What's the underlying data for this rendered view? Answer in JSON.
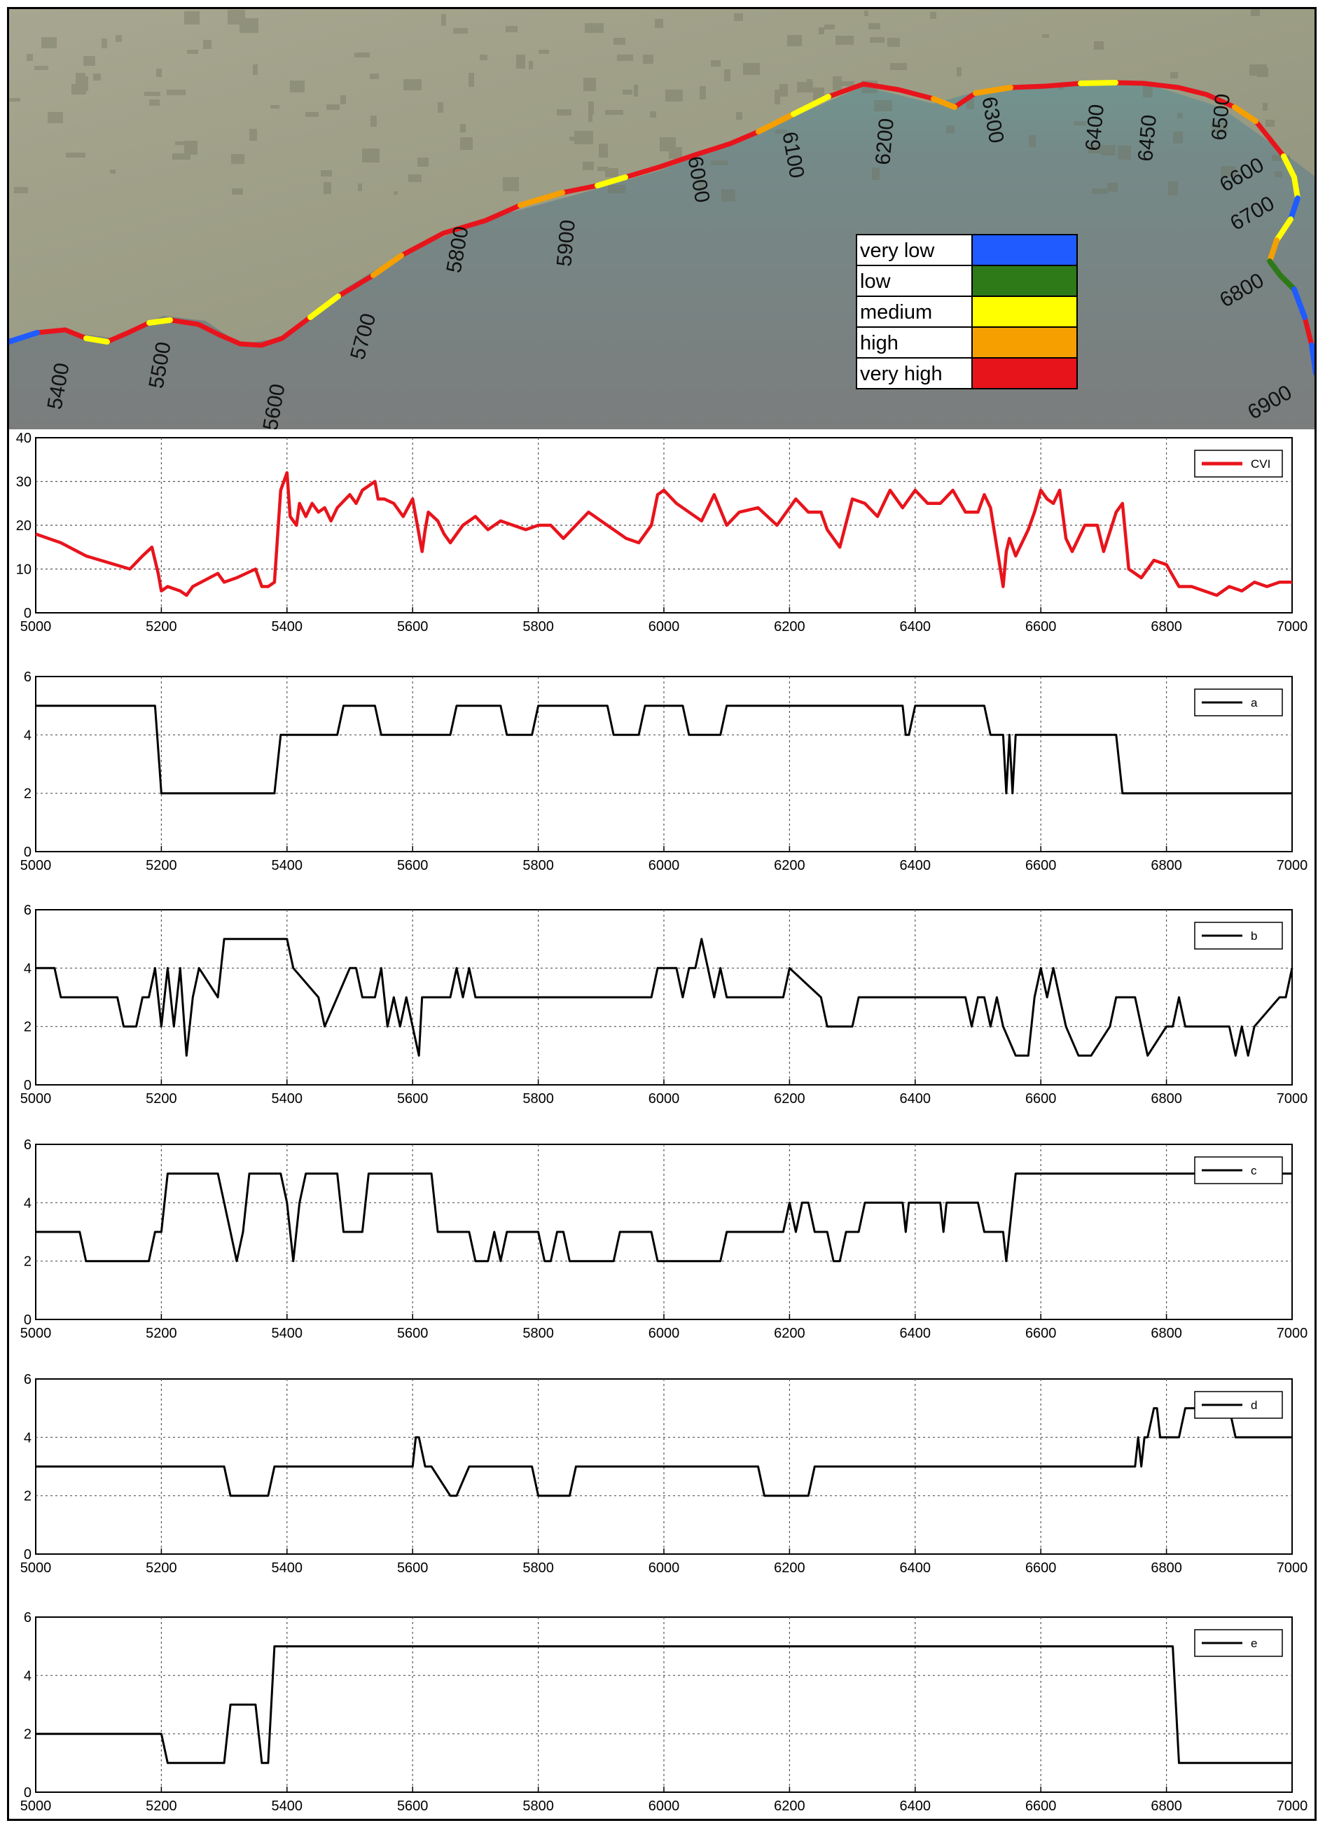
{
  "map": {
    "chainage_labels": [
      "5400",
      "5500",
      "5600",
      "5700",
      "5800",
      "5900",
      "6000",
      "6100",
      "6200",
      "6300",
      "6400",
      "6450",
      "6500",
      "6600",
      "6700",
      "6800",
      "6900"
    ],
    "legend": [
      {
        "label": "very low",
        "color": "#1f5bff"
      },
      {
        "label": "low",
        "color": "#2e7a18"
      },
      {
        "label": "medium",
        "color": "#ffff00"
      },
      {
        "label": "high",
        "color": "#f5a000"
      },
      {
        "label": "very high",
        "color": "#e8141c"
      }
    ]
  },
  "chart_data": [
    {
      "type": "line",
      "name": "CVI",
      "legend": "CVI",
      "color": "#e8141c",
      "xlim": [
        5000,
        7000
      ],
      "ylim": [
        0,
        40
      ],
      "xticks": [
        5000,
        5200,
        5400,
        5600,
        5800,
        6000,
        6200,
        6400,
        6600,
        6800,
        7000
      ],
      "yticks": [
        0,
        10,
        20,
        30,
        40
      ],
      "grid": true,
      "legend_position": "top-right",
      "x": [
        5000,
        5040,
        5080,
        5150,
        5170,
        5185,
        5195,
        5200,
        5210,
        5230,
        5240,
        5250,
        5290,
        5300,
        5320,
        5350,
        5360,
        5370,
        5380,
        5390,
        5400,
        5405,
        5415,
        5420,
        5430,
        5440,
        5450,
        5460,
        5470,
        5480,
        5500,
        5510,
        5520,
        5540,
        5545,
        5555,
        5570,
        5585,
        5600,
        5615,
        5620,
        5625,
        5640,
        5650,
        5660,
        5680,
        5700,
        5720,
        5740,
        5760,
        5780,
        5800,
        5820,
        5840,
        5860,
        5880,
        5900,
        5920,
        5940,
        5960,
        5980,
        5990,
        6000,
        6020,
        6040,
        6060,
        6080,
        6100,
        6120,
        6150,
        6180,
        6200,
        6210,
        6230,
        6250,
        6260,
        6280,
        6300,
        6320,
        6340,
        6360,
        6380,
        6400,
        6420,
        6440,
        6460,
        6480,
        6500,
        6510,
        6520,
        6530,
        6540,
        6545,
        6550,
        6560,
        6580,
        6590,
        6600,
        6610,
        6620,
        6630,
        6640,
        6650,
        6670,
        6690,
        6700,
        6720,
        6730,
        6740,
        6760,
        6780,
        6800,
        6820,
        6840,
        6860,
        6880,
        6900,
        6920,
        6940,
        6960,
        6980,
        7000
      ],
      "y": [
        18,
        16,
        13,
        10,
        13,
        15,
        9,
        5,
        6,
        5,
        4,
        6,
        9,
        7,
        8,
        10,
        6,
        6,
        7,
        28,
        32,
        22,
        20,
        25,
        22,
        25,
        23,
        24,
        21,
        24,
        27,
        25,
        28,
        30,
        26,
        26,
        25,
        22,
        26,
        14,
        19,
        23,
        21,
        18,
        16,
        20,
        22,
        19,
        21,
        20,
        19,
        20,
        20,
        17,
        20,
        23,
        21,
        19,
        17,
        16,
        20,
        27,
        28,
        25,
        23,
        21,
        27,
        20,
        23,
        24,
        20,
        24,
        26,
        23,
        23,
        19,
        15,
        26,
        25,
        22,
        28,
        24,
        28,
        25,
        25,
        28,
        23,
        23,
        27,
        24,
        15,
        6,
        14,
        17,
        13,
        19,
        23,
        28,
        26,
        25,
        28,
        17,
        14,
        20,
        20,
        14,
        23,
        25,
        10,
        8,
        12,
        11,
        6,
        6,
        5,
        4,
        6,
        5,
        7,
        6,
        7,
        7
      ]
    },
    {
      "type": "line",
      "name": "a",
      "legend": "a",
      "color": "#000000",
      "xlim": [
        5000,
        7000
      ],
      "ylim": [
        0,
        6
      ],
      "xticks": [
        5000,
        5200,
        5400,
        5600,
        5800,
        6000,
        6200,
        6400,
        6600,
        6800,
        7000
      ],
      "yticks": [
        0,
        2,
        4,
        6
      ],
      "grid": true,
      "legend_position": "top-right",
      "x": [
        5000,
        5190,
        5200,
        5380,
        5390,
        5480,
        5490,
        5540,
        5550,
        5660,
        5670,
        5740,
        5750,
        5790,
        5800,
        5910,
        5920,
        5960,
        5970,
        6030,
        6040,
        6090,
        6100,
        6380,
        6385,
        6390,
        6400,
        6510,
        6520,
        6540,
        6545,
        6550,
        6555,
        6560,
        6720,
        6730,
        7000
      ],
      "y": [
        5,
        5,
        2,
        2,
        4,
        4,
        5,
        5,
        4,
        4,
        5,
        5,
        4,
        4,
        5,
        5,
        4,
        4,
        5,
        5,
        4,
        4,
        5,
        5,
        4,
        4,
        5,
        5,
        4,
        4,
        2,
        4,
        2,
        4,
        4,
        2,
        2
      ]
    },
    {
      "type": "line",
      "name": "b",
      "legend": "b",
      "color": "#000000",
      "xlim": [
        5000,
        7000
      ],
      "ylim": [
        0,
        6
      ],
      "xticks": [
        5000,
        5200,
        5400,
        5600,
        5800,
        6000,
        6200,
        6400,
        6600,
        6800,
        7000
      ],
      "yticks": [
        0,
        2,
        4,
        6
      ],
      "grid": true,
      "legend_position": "top-right",
      "x": [
        5000,
        5030,
        5040,
        5130,
        5140,
        5160,
        5170,
        5180,
        5190,
        5200,
        5210,
        5220,
        5230,
        5240,
        5250,
        5260,
        5290,
        5300,
        5400,
        5410,
        5450,
        5460,
        5480,
        5500,
        5510,
        5520,
        5540,
        5550,
        5560,
        5570,
        5580,
        5590,
        5600,
        5610,
        5615,
        5620,
        5630,
        5660,
        5670,
        5680,
        5690,
        5700,
        5980,
        5990,
        6020,
        6030,
        6040,
        6050,
        6060,
        6080,
        6090,
        6100,
        6110,
        6190,
        6200,
        6250,
        6260,
        6300,
        6310,
        6480,
        6490,
        6500,
        6510,
        6520,
        6530,
        6540,
        6560,
        6580,
        6590,
        6600,
        6610,
        6620,
        6630,
        6640,
        6660,
        6680,
        6710,
        6720,
        6750,
        6760,
        6770,
        6800,
        6810,
        6820,
        6830,
        6900,
        6910,
        6920,
        6930,
        6940,
        6980,
        6990,
        7000
      ],
      "y": [
        4,
        4,
        3,
        3,
        2,
        2,
        3,
        3,
        4,
        2,
        4,
        2,
        4,
        1,
        3,
        4,
        3,
        5,
        5,
        4,
        3,
        2,
        3,
        4,
        4,
        3,
        3,
        4,
        2,
        3,
        2,
        3,
        2,
        1,
        3,
        3,
        3,
        3,
        4,
        3,
        4,
        3,
        3,
        4,
        4,
        3,
        4,
        4,
        5,
        3,
        4,
        3,
        3,
        3,
        4,
        3,
        2,
        2,
        3,
        3,
        2,
        3,
        3,
        2,
        3,
        2,
        1,
        1,
        3,
        4,
        3,
        4,
        3,
        2,
        1,
        1,
        2,
        3,
        3,
        2,
        1,
        2,
        2,
        3,
        2,
        2,
        1,
        2,
        1,
        2,
        3,
        3,
        4
      ]
    },
    {
      "type": "line",
      "name": "c",
      "legend": "c",
      "color": "#000000",
      "xlim": [
        5000,
        7000
      ],
      "ylim": [
        0,
        6
      ],
      "xticks": [
        5000,
        5200,
        5400,
        5600,
        5800,
        6000,
        6200,
        6400,
        6600,
        6800,
        7000
      ],
      "yticks": [
        0,
        2,
        4,
        6
      ],
      "grid": true,
      "legend_position": "top-right",
      "x": [
        5000,
        5070,
        5080,
        5180,
        5190,
        5200,
        5210,
        5290,
        5300,
        5310,
        5320,
        5330,
        5340,
        5350,
        5390,
        5400,
        5410,
        5420,
        5430,
        5440,
        5450,
        5480,
        5490,
        5520,
        5530,
        5630,
        5640,
        5690,
        5700,
        5720,
        5730,
        5740,
        5750,
        5800,
        5810,
        5820,
        5830,
        5840,
        5850,
        5920,
        5930,
        5980,
        5990,
        6090,
        6100,
        6190,
        6200,
        6210,
        6220,
        6230,
        6240,
        6260,
        6270,
        6280,
        6290,
        6310,
        6320,
        6380,
        6385,
        6390,
        6440,
        6445,
        6450,
        6500,
        6510,
        6540,
        6545,
        6550,
        6560,
        7000
      ],
      "y": [
        3,
        3,
        2,
        2,
        3,
        3,
        5,
        5,
        4,
        3,
        2,
        3,
        5,
        5,
        5,
        4,
        2,
        4,
        5,
        5,
        5,
        5,
        3,
        3,
        5,
        5,
        3,
        3,
        2,
        2,
        3,
        2,
        3,
        3,
        2,
        2,
        3,
        3,
        2,
        2,
        3,
        3,
        2,
        2,
        3,
        3,
        4,
        3,
        4,
        4,
        3,
        3,
        2,
        2,
        3,
        3,
        4,
        4,
        3,
        4,
        4,
        3,
        4,
        4,
        3,
        3,
        2,
        3,
        5,
        5
      ]
    },
    {
      "type": "line",
      "name": "d",
      "legend": "d",
      "color": "#000000",
      "xlim": [
        5000,
        7000
      ],
      "ylim": [
        0,
        6
      ],
      "xticks": [
        5000,
        5200,
        5400,
        5600,
        5800,
        6000,
        6200,
        6400,
        6600,
        6800,
        7000
      ],
      "yticks": [
        0,
        2,
        4,
        6
      ],
      "grid": true,
      "legend_position": "top-right",
      "x": [
        5000,
        5300,
        5310,
        5370,
        5380,
        5600,
        5605,
        5610,
        5620,
        5630,
        5660,
        5670,
        5690,
        5700,
        5790,
        5800,
        5850,
        5860,
        6150,
        6160,
        6230,
        6240,
        6750,
        6755,
        6760,
        6765,
        6770,
        6780,
        6785,
        6790,
        6800,
        6820,
        6830,
        6900,
        6910,
        7000
      ],
      "y": [
        3,
        3,
        2,
        2,
        3,
        3,
        4,
        4,
        3,
        3,
        2,
        2,
        3,
        3,
        3,
        2,
        2,
        3,
        3,
        2,
        2,
        3,
        3,
        4,
        3,
        4,
        4,
        5,
        5,
        4,
        4,
        4,
        5,
        5,
        4,
        4
      ]
    },
    {
      "type": "line",
      "name": "e",
      "legend": "e",
      "color": "#000000",
      "xlim": [
        5000,
        7000
      ],
      "ylim": [
        0,
        6
      ],
      "xticks": [
        5000,
        5200,
        5400,
        5600,
        5800,
        6000,
        6200,
        6400,
        6600,
        6800,
        7000
      ],
      "yticks": [
        0,
        2,
        4,
        6
      ],
      "grid": true,
      "legend_position": "top-right",
      "x": [
        5000,
        5200,
        5210,
        5300,
        5310,
        5350,
        5360,
        5370,
        5380,
        6810,
        6820,
        7000
      ],
      "y": [
        2,
        2,
        1,
        1,
        3,
        3,
        1,
        1,
        5,
        5,
        1,
        1
      ]
    }
  ]
}
